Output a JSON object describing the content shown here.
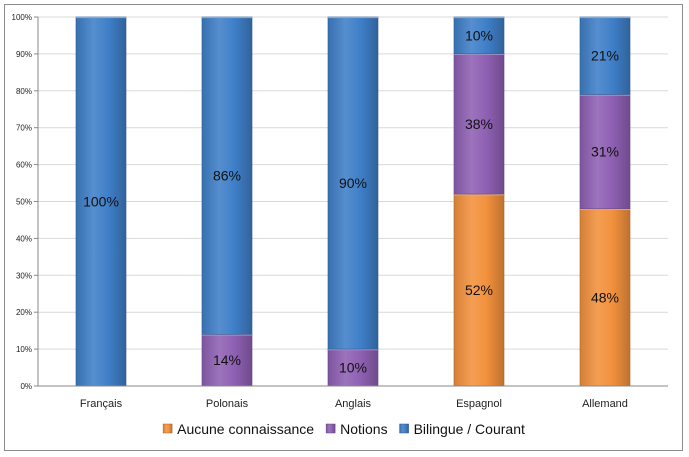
{
  "chart_data": {
    "type": "bar",
    "stacked": true,
    "percent_stacked": true,
    "categories": [
      "Français",
      "Polonais",
      "Anglais",
      "Espagnol",
      "Allemand"
    ],
    "series": [
      {
        "name": "Aucune connaissance",
        "values": [
          0,
          0,
          0,
          52,
          48
        ],
        "color": "#f2913d"
      },
      {
        "name": "Notions",
        "values": [
          0,
          14,
          10,
          38,
          31
        ],
        "color": "#8e60b3"
      },
      {
        "name": "Bilingue / Courant",
        "values": [
          100,
          86,
          90,
          10,
          21
        ],
        "color": "#3f7fc8"
      }
    ],
    "data_labels": [
      {
        "category": "Français",
        "series": "Bilingue / Courant",
        "text": "100%"
      },
      {
        "category": "Polonais",
        "series": "Notions",
        "text": "14%"
      },
      {
        "category": "Polonais",
        "series": "Bilingue / Courant",
        "text": "86%"
      },
      {
        "category": "Anglais",
        "series": "Notions",
        "text": "10%"
      },
      {
        "category": "Anglais",
        "series": "Bilingue / Courant",
        "text": "90%"
      },
      {
        "category": "Espagnol",
        "series": "Aucune connaissance",
        "text": "52%"
      },
      {
        "category": "Espagnol",
        "series": "Notions",
        "text": "38%"
      },
      {
        "category": "Espagnol",
        "series": "Bilingue / Courant",
        "text": "10%"
      },
      {
        "category": "Allemand",
        "series": "Aucune connaissance",
        "text": "48%"
      },
      {
        "category": "Allemand",
        "series": "Notions",
        "text": "31%"
      },
      {
        "category": "Allemand",
        "series": "Bilingue / Courant",
        "text": "21%"
      }
    ],
    "y_ticks": [
      "0%",
      "10%",
      "20%",
      "30%",
      "40%",
      "50%",
      "60%",
      "70%",
      "80%",
      "90%",
      "100%"
    ],
    "ylim": [
      0,
      100
    ],
    "grid": true,
    "legend_position": "bottom",
    "title": "",
    "xlabel": "",
    "ylabel": ""
  }
}
